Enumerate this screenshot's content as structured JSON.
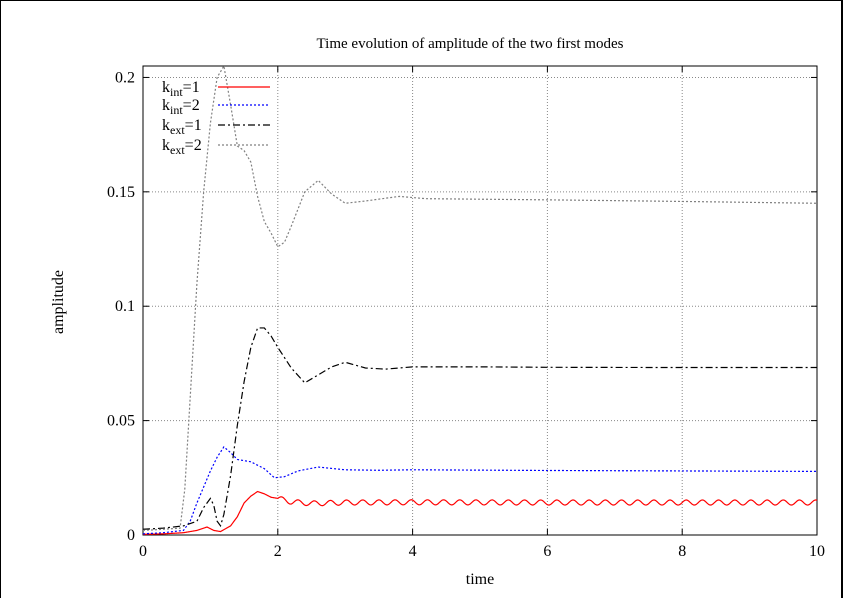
{
  "chart_data": {
    "type": "line",
    "title": "Time evolution of amplitude of the two first modes",
    "xlabel": "time",
    "ylabel": "amplitude",
    "xlim": [
      0,
      10
    ],
    "ylim": [
      0,
      0.205
    ],
    "grid": true,
    "legend_placement": "top-left",
    "xticks": [
      0,
      2,
      4,
      6,
      8,
      10
    ],
    "xtick_labels": [
      "0",
      "2",
      "4",
      "6",
      "8",
      "10"
    ],
    "yticks": [
      0,
      0.05,
      0.1,
      0.15,
      0.2
    ],
    "ytick_labels": [
      "0",
      "0.05",
      "0.1",
      "0.15",
      "0.2"
    ],
    "series": [
      {
        "name": "k_int=1",
        "legend": {
          "base": "k",
          "sub": "int",
          "rest": "=1"
        },
        "color": "#ff0000",
        "dash": "solid",
        "oscillation": {
          "start": 2.0,
          "amplitude": 0.0011,
          "period": 0.24
        },
        "x": [
          0,
          0.3,
          0.6,
          0.8,
          0.9,
          0.95,
          1.05,
          1.15,
          1.3,
          1.4,
          1.5,
          1.6,
          1.7,
          1.8,
          1.9,
          2.0,
          2.2,
          2.5,
          3.0,
          4.0,
          6.0,
          8.0,
          10.0
        ],
        "y": [
          0.0003,
          0.0005,
          0.001,
          0.002,
          0.003,
          0.0035,
          0.002,
          0.0015,
          0.004,
          0.008,
          0.014,
          0.017,
          0.019,
          0.018,
          0.0165,
          0.016,
          0.0145,
          0.0138,
          0.0142,
          0.0143,
          0.0142,
          0.0142,
          0.0142
        ]
      },
      {
        "name": "k_int=2",
        "legend": {
          "base": "k",
          "sub": "int",
          "rest": "=2"
        },
        "color": "#0000ff",
        "dash": "2,2",
        "x": [
          0,
          0.3,
          0.6,
          0.7,
          0.8,
          0.9,
          1.0,
          1.1,
          1.2,
          1.3,
          1.4,
          1.6,
          1.8,
          1.95,
          2.1,
          2.3,
          2.6,
          3.0,
          3.5,
          4.0,
          6.0,
          8.0,
          10.0
        ],
        "y": [
          0.0005,
          0.001,
          0.002,
          0.006,
          0.014,
          0.021,
          0.028,
          0.034,
          0.0385,
          0.036,
          0.033,
          0.032,
          0.029,
          0.025,
          0.0255,
          0.028,
          0.0297,
          0.0285,
          0.0283,
          0.0285,
          0.0282,
          0.028,
          0.0278
        ]
      },
      {
        "name": "k_ext=1",
        "legend": {
          "base": "k",
          "sub": "ext",
          "rest": "=1"
        },
        "color": "#000000",
        "dash": "7,3,2,3",
        "x": [
          0,
          0.3,
          0.6,
          0.8,
          0.9,
          1.0,
          1.05,
          1.1,
          1.15,
          1.2,
          1.3,
          1.4,
          1.5,
          1.6,
          1.7,
          1.8,
          1.9,
          2.0,
          2.2,
          2.4,
          2.6,
          2.8,
          3.0,
          3.3,
          3.6,
          4.0,
          5.0,
          6.0,
          8.0,
          10.0
        ],
        "y": [
          0.0025,
          0.003,
          0.004,
          0.006,
          0.012,
          0.016,
          0.013,
          0.006,
          0.004,
          0.009,
          0.026,
          0.048,
          0.067,
          0.082,
          0.0905,
          0.0905,
          0.087,
          0.082,
          0.073,
          0.0665,
          0.07,
          0.0735,
          0.0755,
          0.073,
          0.0725,
          0.0735,
          0.0735,
          0.0733,
          0.0732,
          0.0732
        ]
      },
      {
        "name": "k_ext=2",
        "legend": {
          "base": "k",
          "sub": "ext",
          "rest": "=2"
        },
        "color": "#808080",
        "dash": "2,2",
        "x": [
          0,
          0.3,
          0.55,
          0.62,
          0.7,
          0.8,
          0.9,
          1.0,
          1.1,
          1.2,
          1.3,
          1.4,
          1.5,
          1.6,
          1.7,
          1.8,
          1.9,
          2.0,
          2.1,
          2.2,
          2.4,
          2.6,
          2.8,
          3.0,
          3.3,
          3.8,
          4.2,
          6.0,
          8.0,
          10.0
        ],
        "y": [
          0.002,
          0.0025,
          0.003,
          0.02,
          0.06,
          0.11,
          0.15,
          0.18,
          0.2,
          0.205,
          0.188,
          0.17,
          0.168,
          0.163,
          0.148,
          0.137,
          0.132,
          0.126,
          0.128,
          0.135,
          0.15,
          0.155,
          0.149,
          0.145,
          0.146,
          0.148,
          0.147,
          0.1465,
          0.1458,
          0.145
        ]
      }
    ]
  }
}
